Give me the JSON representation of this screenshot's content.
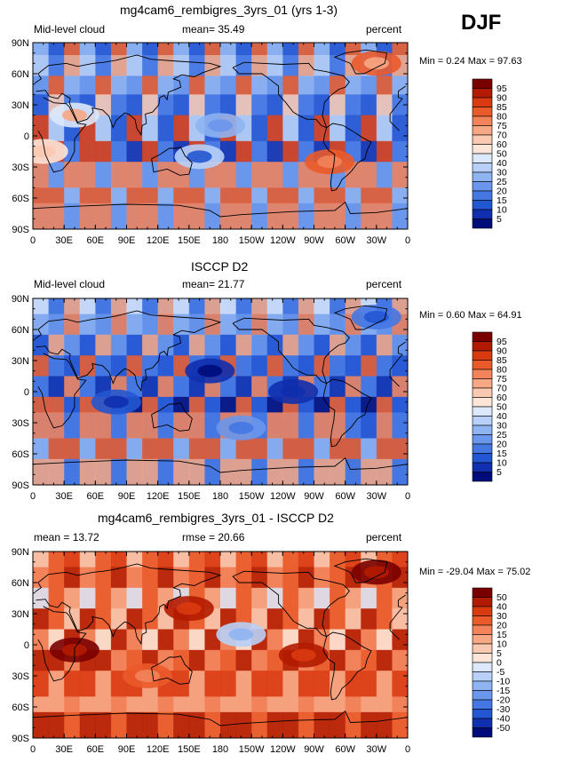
{
  "season": "DJF",
  "panels": [
    {
      "title": "mg4cam6_rembigres_3yrs_01 (yrs 1-3)",
      "left_label": "Mid-level cloud",
      "stat1": "mean=  35.49",
      "stat2": "",
      "units": "percent",
      "minmax": "Min =    0.24 Max =   97.63",
      "levels": [
        "95",
        "90",
        "85",
        "80",
        "75",
        "70",
        "60",
        "50",
        "40",
        "30",
        "25",
        "20",
        "15",
        "10",
        "5"
      ],
      "colors": [
        "#7a0000",
        "#b31b00",
        "#d93a10",
        "#ea5a2a",
        "#f2835a",
        "#f6a784",
        "#f9c9b2",
        "#fde6d8",
        "#dce8fb",
        "#b8d0f7",
        "#8fb4f2",
        "#6a96ec",
        "#4577e3",
        "#2356d2",
        "#0f2fae",
        "#000c7a"
      ]
    },
    {
      "title": "ISCCP D2",
      "left_label": "Mid-level cloud",
      "stat1": "mean=  21.77",
      "stat2": "",
      "units": "percent",
      "minmax": "Min =    0.60 Max =   64.91",
      "levels": [
        "95",
        "90",
        "85",
        "80",
        "75",
        "70",
        "60",
        "50",
        "40",
        "30",
        "25",
        "20",
        "15",
        "10",
        "5"
      ],
      "colors": [
        "#7a0000",
        "#b31b00",
        "#d93a10",
        "#ea5a2a",
        "#f2835a",
        "#f6a784",
        "#f9c9b2",
        "#fde6d8",
        "#dce8fb",
        "#b8d0f7",
        "#8fb4f2",
        "#6a96ec",
        "#4577e3",
        "#2356d2",
        "#0f2fae",
        "#000c7a"
      ]
    },
    {
      "title": "mg4cam6_rembigres_3yrs_01 - ISCCP D2",
      "left_label": "mean =  13.72",
      "stat1": "rmse =  20.66",
      "stat2": "",
      "units": "percent",
      "minmax": "Min = -29.04 Max =   75.02",
      "levels": [
        "50",
        "40",
        "30",
        "20",
        "15",
        "10",
        "5",
        "0",
        "-5",
        "-10",
        "-15",
        "-20",
        "-30",
        "-40",
        "-50"
      ],
      "colors": [
        "#7a0000",
        "#b31b00",
        "#d93a10",
        "#ea5a2a",
        "#f2835a",
        "#f6a784",
        "#f9c9b2",
        "#fde6d8",
        "#dce8fb",
        "#b8d0f7",
        "#8fb4f2",
        "#6a96ec",
        "#4577e3",
        "#2356d2",
        "#0f2fae",
        "#000c7a"
      ]
    }
  ],
  "lat_ticks": [
    "90N",
    "60N",
    "30N",
    "0",
    "30S",
    "60S",
    "90S"
  ],
  "lon_ticks": [
    "0",
    "30E",
    "60E",
    "90E",
    "120E",
    "150E",
    "180",
    "150W",
    "120W",
    "90W",
    "60W",
    "30W",
    "0"
  ]
}
